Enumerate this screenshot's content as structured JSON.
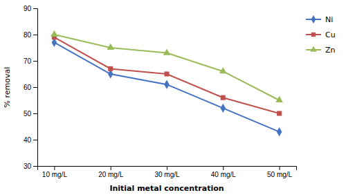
{
  "chart_data": {
    "type": "line",
    "xlabel": "Initial metal concentration",
    "ylabel": "% removal",
    "categories": [
      "10 mg/L",
      "20 mg/L",
      "30 mg/L",
      "40 mg/L",
      "50 mg/L"
    ],
    "series": [
      {
        "name": "Ni",
        "color": "#4472C4",
        "marker": "diamond",
        "values": [
          77,
          65,
          61,
          52,
          43
        ]
      },
      {
        "name": "Cu",
        "color": "#C0504D",
        "marker": "square",
        "values": [
          79,
          67,
          65,
          56,
          50
        ]
      },
      {
        "name": "Zn",
        "color": "#9BBB59",
        "marker": "triangle",
        "values": [
          80,
          75,
          73,
          66,
          55
        ]
      }
    ],
    "ylim": [
      30,
      90
    ],
    "yticks": [
      30,
      40,
      50,
      60,
      70,
      80,
      90
    ],
    "grid": false,
    "legend": "upper right"
  }
}
